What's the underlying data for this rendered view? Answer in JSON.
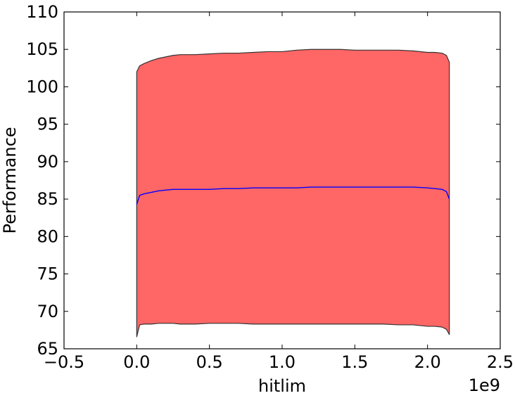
{
  "chart_data": {
    "type": "area",
    "title": "",
    "xlabel": "hitlim",
    "ylabel": "Performance",
    "x_offset_label": "1e9",
    "xlim": [
      -0.5,
      2.5
    ],
    "ylim": [
      65,
      110
    ],
    "x_scale": 1000000000,
    "x_ticks": [
      "−0.5",
      "0.0",
      "0.5",
      "1.0",
      "1.5",
      "2.0",
      "2.5"
    ],
    "x_tick_values": [
      -0.5,
      0.0,
      0.5,
      1.0,
      1.5,
      2.0,
      2.5
    ],
    "y_ticks": [
      "65",
      "70",
      "75",
      "80",
      "85",
      "90",
      "95",
      "100",
      "105",
      "110"
    ],
    "y_tick_values": [
      65,
      70,
      75,
      80,
      85,
      90,
      95,
      100,
      105,
      110
    ],
    "grid": false,
    "x": [
      0.0,
      0.02,
      0.05,
      0.1,
      0.15,
      0.2,
      0.25,
      0.3,
      0.4,
      0.5,
      0.6,
      0.7,
      0.8,
      0.9,
      1.0,
      1.1,
      1.2,
      1.3,
      1.4,
      1.5,
      1.6,
      1.7,
      1.8,
      1.9,
      2.0,
      2.05,
      2.1,
      2.13,
      2.15
    ],
    "series": [
      {
        "role": "upper_band",
        "values": [
          102.0,
          102.8,
          103.1,
          103.5,
          103.8,
          104.0,
          104.2,
          104.3,
          104.3,
          104.4,
          104.5,
          104.5,
          104.6,
          104.7,
          104.7,
          104.9,
          105.0,
          105.0,
          105.0,
          104.9,
          104.9,
          104.9,
          104.9,
          104.8,
          104.6,
          104.6,
          104.5,
          104.2,
          103.3
        ]
      },
      {
        "role": "lower_band",
        "values": [
          66.6,
          68.2,
          68.3,
          68.3,
          68.4,
          68.4,
          68.4,
          68.3,
          68.3,
          68.4,
          68.4,
          68.4,
          68.3,
          68.3,
          68.3,
          68.3,
          68.3,
          68.3,
          68.3,
          68.3,
          68.3,
          68.3,
          68.2,
          68.2,
          68.0,
          68.0,
          67.9,
          67.6,
          66.9
        ]
      },
      {
        "role": "mean",
        "values": [
          84.3,
          85.5,
          85.7,
          85.9,
          86.1,
          86.2,
          86.3,
          86.3,
          86.3,
          86.3,
          86.4,
          86.4,
          86.5,
          86.5,
          86.5,
          86.5,
          86.6,
          86.6,
          86.6,
          86.6,
          86.6,
          86.6,
          86.6,
          86.6,
          86.5,
          86.4,
          86.3,
          86.0,
          85.0
        ]
      }
    ],
    "colors": {
      "band_fill": "#ff6666",
      "band_edge": "#333333",
      "mean_line": "#0000ff",
      "axes": "#000000"
    }
  }
}
